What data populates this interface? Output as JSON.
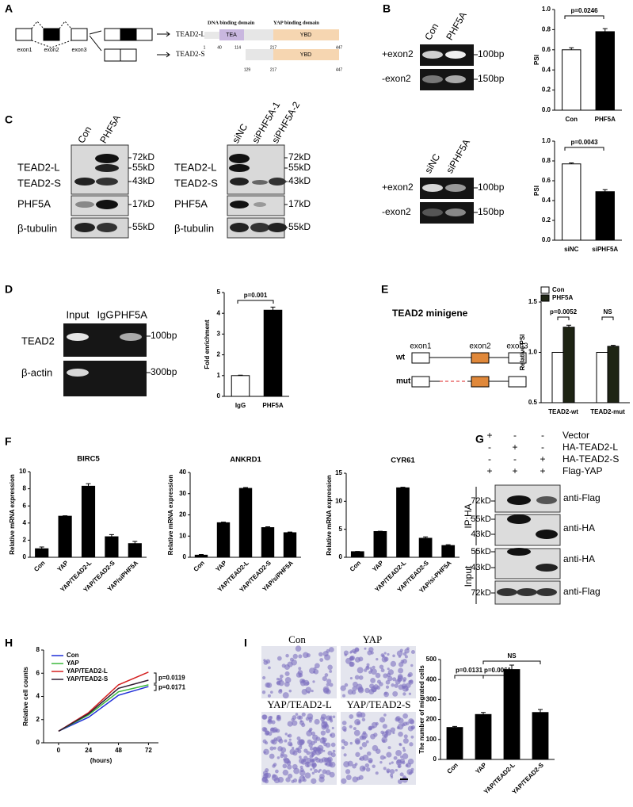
{
  "panel_labels": [
    "A",
    "B",
    "C",
    "D",
    "E",
    "F",
    "G",
    "H",
    "I"
  ],
  "panel_a": {
    "exons": [
      "exon1",
      "exon2",
      "exon3"
    ],
    "isoforms": [
      "TEAD2-L",
      "TEAD2-S"
    ],
    "domains": [
      "DNA binding domain",
      "YAP binding domain"
    ],
    "domain_boxes": [
      "TEA",
      "YBD",
      "YBD"
    ],
    "positions_l": [
      1,
      40,
      114,
      217,
      447
    ],
    "positions_s": [
      129,
      217,
      447
    ]
  },
  "panel_b_gels": [
    {
      "lanes": [
        "Con",
        "PHF5A"
      ],
      "rows": [
        "+exon2",
        "-exon2"
      ],
      "sizes": [
        "100bp",
        "150bp"
      ]
    },
    {
      "lanes": [
        "siNC",
        "siPHF5A"
      ],
      "rows": [
        "+exon2",
        "-exon2"
      ],
      "sizes": [
        "100bp",
        "150bp"
      ]
    }
  ],
  "panel_c_blots": [
    {
      "lanes": [
        "Con",
        "PHF5A"
      ],
      "rows": [
        "TEAD2-L",
        "TEAD2-S",
        "PHF5A",
        "β-tubulin"
      ],
      "markers": [
        "72kD",
        "55kD",
        "43kD",
        "17kD",
        "55kD"
      ]
    },
    {
      "lanes": [
        "siNC",
        "siPHF5A-1",
        "siPHF5A-2"
      ],
      "rows": [
        "TEAD2-L",
        "TEAD2-S",
        "PHF5A",
        "β-tubulin"
      ],
      "markers": [
        "72kD",
        "55kD",
        "43kD",
        "17kD",
        "55kD"
      ]
    }
  ],
  "panel_d_gel": {
    "lanes": [
      "Input",
      "IgG",
      "PHF5A"
    ],
    "rows": [
      "TEAD2",
      "β-actin"
    ],
    "sizes": [
      "100bp",
      "300bp"
    ]
  },
  "panel_e_diagram": {
    "title": "TEAD2 minigene",
    "rows": [
      "wt",
      "mut"
    ],
    "exons": [
      "exon1",
      "exon2",
      "exon3"
    ]
  },
  "panel_g_blot": {
    "conditions": [
      "Vector",
      "HA-TEAD2-L",
      "HA-TEAD2-S",
      "Flag-YAP"
    ],
    "matrix": [
      [
        "+",
        "-",
        "-"
      ],
      [
        "-",
        "+",
        "-"
      ],
      [
        "-",
        "-",
        "+"
      ],
      [
        "+",
        "+",
        "+"
      ]
    ],
    "groups": [
      "IP:HA",
      "Input"
    ],
    "markers": [
      "72kD",
      "55kD",
      "43kD",
      "55kD",
      "43kD",
      "72kD"
    ],
    "antibodies": [
      "anti-Flag",
      "anti-HA",
      "anti-HA",
      "anti-Flag"
    ]
  },
  "panel_i_images": [
    "Con",
    "YAP",
    "YAP/TEAD2-L",
    "YAP/TEAD2-S"
  ],
  "chart_data": [
    {
      "type": "bar",
      "ylabel": "PSI",
      "categories": [
        "Con",
        "PHF5A"
      ],
      "values": [
        0.6,
        0.78
      ],
      "errors": [
        0.02,
        0.03
      ],
      "colors": [
        "#ffffff",
        "#000000"
      ],
      "ylim": [
        0,
        1
      ],
      "yticks": [
        {
          "value": 0,
          "label": "0.0"
        },
        0.2,
        0.4,
        0.6,
        0.8,
        {
          "value": 1,
          "label": "1.0"
        }
      ],
      "annotations": [
        "p=0.0246"
      ]
    },
    {
      "type": "bar",
      "ylabel": "PSI",
      "categories": [
        "siNC",
        "siPHF5A"
      ],
      "values": [
        0.77,
        0.49
      ],
      "errors": [
        0.01,
        0.02
      ],
      "colors": [
        "#ffffff",
        "#000000"
      ],
      "ylim": [
        0,
        1
      ],
      "yticks": [
        {
          "value": 0,
          "label": "0.0"
        },
        0.2,
        0.4,
        0.6,
        0.8,
        {
          "value": 1,
          "label": "1.0"
        }
      ],
      "annotations": [
        "p=0.0043"
      ]
    },
    {
      "type": "bar",
      "ylabel": "Fold enrichment",
      "categories": [
        "IgG",
        "PHF5A"
      ],
      "values": [
        1,
        4.15
      ],
      "errors": [
        0.02,
        0.15
      ],
      "colors": [
        "#ffffff",
        "#000000"
      ],
      "ylim": [
        0,
        5
      ],
      "yticks": [
        0,
        1,
        2,
        3,
        4,
        5
      ],
      "annotations": [
        "p=0.001"
      ]
    },
    {
      "type": "bar",
      "ylabel": "Relative PSI",
      "categories": [
        "TEAD2-wt",
        "TEAD2-mut"
      ],
      "series": [
        {
          "name": "Con",
          "color": "#ffffff",
          "values": [
            1,
            1
          ]
        },
        {
          "name": "PHF5A",
          "color": "#1e2414",
          "values": [
            1.25,
            1.06
          ],
          "errors": [
            0.02,
            0.01
          ]
        }
      ],
      "legend": "top-left",
      "ylim": [
        0.5,
        1.5
      ],
      "yticks": [
        0.5,
        {
          "value": 1,
          "label": "1.0"
        },
        1.5
      ],
      "annotations": [
        "p=0.0052",
        "NS"
      ]
    },
    {
      "type": "bar",
      "title": "BIRC5",
      "ylabel": "Relative mRNA expression",
      "categories": [
        "Con",
        "YAP",
        "YAP/TEAD2-L",
        "YAP/TEAD2-S",
        "YAP/siPHF5A"
      ],
      "values": [
        1,
        4.8,
        8.3,
        2.4,
        1.6
      ],
      "errors": [
        0.2,
        0.05,
        0.3,
        0.25,
        0.25
      ],
      "color": "#000000",
      "ylim": [
        0,
        10
      ],
      "yticks": [
        0,
        2,
        4,
        6,
        8,
        10
      ]
    },
    {
      "type": "bar",
      "title": "ANKRD1",
      "ylabel": "Relative mRNA expression",
      "categories": [
        "Con",
        "YAP",
        "YAP/TEAD2-L",
        "YAP/TEAD2-S",
        "YAP/siPHF5A"
      ],
      "values": [
        1,
        16.3,
        32.5,
        14,
        11.6
      ],
      "errors": [
        0.3,
        0.3,
        0.4,
        0.4,
        0.3
      ],
      "color": "#000000",
      "ylim": [
        0,
        40
      ],
      "yticks": [
        0,
        10,
        20,
        30,
        40
      ]
    },
    {
      "type": "bar",
      "title": "CYR61",
      "ylabel": "Relative mRNA expression",
      "categories": [
        "Con",
        "YAP",
        "YAP/TEAD2-L",
        "YAP/TEAD2-S",
        "YAP/si-PHF5A"
      ],
      "values": [
        1,
        4.6,
        12.4,
        3.4,
        2.1
      ],
      "errors": [
        0.05,
        0.05,
        0.1,
        0.25,
        0.15
      ],
      "color": "#000000",
      "ylim": [
        0,
        15
      ],
      "yticks": [
        0,
        5,
        10,
        15
      ]
    },
    {
      "type": "line",
      "ylabel": "Relative cell counts",
      "xlabel": "(hours)",
      "x": [
        0,
        24,
        48,
        72
      ],
      "xlim": [
        -12,
        80
      ],
      "xticks": [
        0,
        24,
        48,
        72
      ],
      "ylim": [
        0,
        8
      ],
      "yticks": [
        0,
        2,
        4,
        6,
        8
      ],
      "legend": "top-left",
      "series": [
        {
          "name": "Con",
          "color": "#1f2fd8",
          "values": [
            1,
            2.2,
            4.1,
            4.85
          ]
        },
        {
          "name": "YAP",
          "color": "#3cb83c",
          "values": [
            1,
            2.4,
            4.4,
            5.0
          ]
        },
        {
          "name": "YAP/TEAD2-L",
          "color": "#d42020",
          "values": [
            1,
            2.6,
            5.0,
            6.1
          ]
        },
        {
          "name": "YAP/TEAD2-S",
          "color": "#2e1c32",
          "values": [
            1,
            2.5,
            4.7,
            5.4
          ]
        }
      ],
      "annotations": [
        "p=0.0119",
        "p=0.0171"
      ]
    },
    {
      "type": "bar",
      "ylabel": "The number of migrated cells",
      "categories": [
        "Con",
        "YAP",
        "YAP/TEAD2-L",
        "YAP/TEAD2-S"
      ],
      "values": [
        160,
        225,
        450,
        235
      ],
      "errors": [
        5,
        10,
        22,
        15
      ],
      "color": "#000000",
      "ylim": [
        0,
        500
      ],
      "yticks": [
        0,
        100,
        200,
        300,
        400,
        500
      ],
      "annotations": [
        "p=0.0131",
        "p=0.0061",
        "NS"
      ]
    }
  ]
}
